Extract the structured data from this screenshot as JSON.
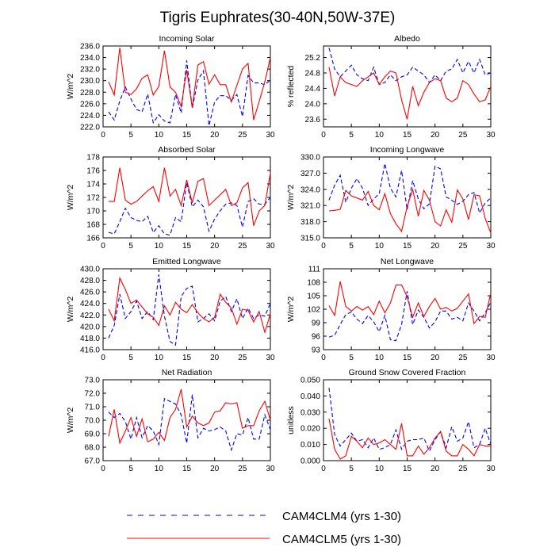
{
  "figure_title": "Tigris Euphrates(30-40N,50W-37E)",
  "legend": {
    "entries": [
      {
        "label": "CAM4CLM4 (yrs 1-30)",
        "color": "#0000ff",
        "style": "dashed"
      },
      {
        "label": "CAM4CLM5 (yrs 1-30)",
        "color": "#ff0000",
        "style": "solid"
      }
    ]
  },
  "colors": {
    "clm4": "#0000ff",
    "clm5": "#ff0000"
  },
  "chart_data": [
    {
      "type": "line",
      "title": "Incoming Solar",
      "ylabel": "W/m^2",
      "xlabel": "",
      "xlim": [
        0,
        30
      ],
      "x_ticks": [
        0,
        5,
        10,
        15,
        20,
        25,
        30
      ],
      "ylim": [
        222,
        236
      ],
      "y_tick_labels": [
        "222.0",
        "224.0",
        "226.0",
        "228.0",
        "230.0",
        "232.0",
        "234.0",
        "236.0"
      ],
      "x": [
        1,
        2,
        3,
        4,
        5,
        6,
        7,
        8,
        9,
        10,
        11,
        12,
        13,
        14,
        15,
        16,
        17,
        18,
        19,
        20,
        21,
        22,
        23,
        24,
        25,
        26,
        27,
        28,
        29,
        30
      ],
      "series": [
        {
          "name": "CAM4CLM4 (yrs 1-30)",
          "values": [
            224.6,
            223.2,
            226.5,
            228.9,
            226.8,
            225.0,
            224.6,
            227.7,
            222.7,
            224.1,
            223.0,
            222.7,
            227.6,
            224.4,
            233.5,
            225.2,
            230.1,
            231.7,
            222.2,
            226.3,
            227.4,
            227.4,
            226.6,
            227.6,
            223.8,
            230.9,
            229.6,
            229.6,
            229.3,
            230.1
          ]
        },
        {
          "name": "CAM4CLM5 (yrs 1-30)",
          "values": [
            229.8,
            227.5,
            235.7,
            228.0,
            227.6,
            228.6,
            230.4,
            231.0,
            227.5,
            229.0,
            235.2,
            228.9,
            228.0,
            225.5,
            231.9,
            225.3,
            232.7,
            233.3,
            229.4,
            231.0,
            229.3,
            229.3,
            226.3,
            229.2,
            232.0,
            233.0,
            223.2,
            226.4,
            229.8,
            234.0
          ]
        }
      ]
    },
    {
      "type": "line",
      "title": "Albedo",
      "ylabel": "% reflected",
      "xlabel": "",
      "xlim": [
        0,
        30
      ],
      "x_ticks": [
        0,
        5,
        10,
        15,
        20,
        25,
        30
      ],
      "ylim": [
        23.4,
        25.5
      ],
      "y_tick_labels": [
        "23.6",
        "24.0",
        "24.4",
        "24.8",
        "25.2"
      ],
      "x": [
        1,
        2,
        3,
        4,
        5,
        6,
        7,
        8,
        9,
        10,
        11,
        12,
        13,
        14,
        15,
        16,
        17,
        18,
        19,
        20,
        21,
        22,
        23,
        24,
        25,
        26,
        27,
        28,
        29,
        30
      ],
      "series": [
        {
          "name": "CAM4CLM4 (yrs 1-30)",
          "values": [
            25.45,
            24.9,
            24.7,
            24.85,
            25.0,
            24.75,
            24.65,
            24.6,
            24.95,
            24.5,
            24.55,
            24.75,
            24.6,
            24.7,
            24.75,
            24.95,
            24.85,
            24.75,
            24.55,
            24.75,
            24.6,
            24.85,
            24.9,
            25.15,
            24.8,
            25.1,
            24.8,
            25.15,
            24.75,
            24.8
          ]
        },
        {
          "name": "CAM4CLM5 (yrs 1-30)",
          "values": [
            24.95,
            24.2,
            24.7,
            24.55,
            24.5,
            24.45,
            24.6,
            24.7,
            24.8,
            24.5,
            24.7,
            24.85,
            24.8,
            24.1,
            23.6,
            24.45,
            23.95,
            24.3,
            24.55,
            24.65,
            24.6,
            24.15,
            24.05,
            24.15,
            24.6,
            24.5,
            24.25,
            24.05,
            24.1,
            24.45
          ]
        }
      ]
    },
    {
      "type": "line",
      "title": "Absorbed Solar",
      "ylabel": "W/m^2",
      "xlabel": "",
      "xlim": [
        0,
        30
      ],
      "x_ticks": [
        0,
        5,
        10,
        15,
        20,
        25,
        30
      ],
      "ylim": [
        166,
        178
      ],
      "y_tick_labels": [
        "166",
        "168",
        "170",
        "172",
        "174",
        "176",
        "178"
      ],
      "x": [
        1,
        2,
        3,
        4,
        5,
        6,
        7,
        8,
        9,
        10,
        11,
        12,
        13,
        14,
        15,
        16,
        17,
        18,
        19,
        20,
        21,
        22,
        23,
        24,
        25,
        26,
        27,
        28,
        29,
        30
      ],
      "series": [
        {
          "name": "CAM4CLM4 (yrs 1-30)",
          "values": [
            166.8,
            166.6,
            168.4,
            170.4,
            169.0,
            168.6,
            168.4,
            169.2,
            166.8,
            167.8,
            166.6,
            166.4,
            169.0,
            168.4,
            174.2,
            170.6,
            171.6,
            170.6,
            167.0,
            168.8,
            170.0,
            171.0,
            171.2,
            170.8,
            167.6,
            171.4,
            171.8,
            171.0,
            171.0,
            172.0
          ]
        },
        {
          "name": "CAM4CLM5 (yrs 1-30)",
          "values": [
            171.4,
            171.4,
            176.4,
            171.6,
            171.0,
            171.4,
            172.2,
            173.0,
            173.6,
            171.4,
            176.4,
            172.2,
            173.2,
            170.8,
            174.6,
            171.2,
            174.4,
            174.8,
            170.8,
            171.6,
            172.4,
            173.2,
            170.8,
            171.2,
            173.4,
            174.2,
            167.8,
            170.0,
            170.8,
            175.6
          ]
        }
      ]
    },
    {
      "type": "line",
      "title": "Incoming Longwave",
      "ylabel": "W/m^2",
      "xlabel": "",
      "xlim": [
        0,
        30
      ],
      "x_ticks": [
        0,
        5,
        10,
        15,
        20,
        25,
        30
      ],
      "ylim": [
        315,
        330
      ],
      "y_tick_labels": [
        "315.0",
        "318.0",
        "321.0",
        "324.0",
        "327.0",
        "330.0"
      ],
      "x": [
        1,
        2,
        3,
        4,
        5,
        6,
        7,
        8,
        9,
        10,
        11,
        12,
        13,
        14,
        15,
        16,
        17,
        18,
        19,
        20,
        21,
        22,
        23,
        24,
        25,
        26,
        27,
        28,
        29,
        30
      ],
      "series": [
        {
          "name": "CAM4CLM4 (yrs 1-30)",
          "values": [
            322.0,
            324.8,
            326.6,
            321.6,
            324.2,
            326.0,
            324.2,
            321.0,
            322.2,
            323.2,
            328.8,
            324.2,
            322.6,
            327.5,
            320.2,
            325.6,
            322.2,
            320.4,
            321.3,
            328.3,
            327.8,
            322.6,
            322.0,
            321.2,
            321.8,
            323.0,
            323.4,
            319.6,
            321.5,
            322.4
          ]
        },
        {
          "name": "CAM4CLM5 (yrs 1-30)",
          "values": [
            320.0,
            320.1,
            320.3,
            323.8,
            322.8,
            322.4,
            322.0,
            323.6,
            321.0,
            320.2,
            323.2,
            319.5,
            317.6,
            316.2,
            320.8,
            324.0,
            319.0,
            323.8,
            322.0,
            318.0,
            317.2,
            320.2,
            317.9,
            323.9,
            322.2,
            318.4,
            323.0,
            322.8,
            318.6,
            315.9
          ]
        }
      ]
    },
    {
      "type": "line",
      "title": "Emitted Longwave",
      "ylabel": "W/m^2",
      "xlabel": "",
      "xlim": [
        0,
        30
      ],
      "x_ticks": [
        0,
        5,
        10,
        15,
        20,
        25,
        30
      ],
      "ylim": [
        416,
        430
      ],
      "y_tick_labels": [
        "416.0",
        "418.0",
        "420.0",
        "422.0",
        "424.0",
        "426.0",
        "428.0",
        "430.0"
      ],
      "x": [
        1,
        2,
        3,
        4,
        5,
        6,
        7,
        8,
        9,
        10,
        11,
        12,
        13,
        14,
        15,
        16,
        17,
        18,
        19,
        20,
        21,
        22,
        23,
        24,
        25,
        26,
        27,
        28,
        29,
        30
      ],
      "series": [
        {
          "name": "CAM4CLM4 (yrs 1-30)",
          "values": [
            418.0,
            420.2,
            425.6,
            421.4,
            422.6,
            424.4,
            421.4,
            422.6,
            421.2,
            429.0,
            421.8,
            417.4,
            416.8,
            425.2,
            426.6,
            427.0,
            420.8,
            421.4,
            422.2,
            421.0,
            424.4,
            425.2,
            422.6,
            424.8,
            421.4,
            423.2,
            421.4,
            422.0,
            421.8,
            424.0
          ]
        },
        {
          "name": "CAM4CLM5 (yrs 1-30)",
          "values": [
            423.0,
            421.0,
            428.4,
            426.4,
            424.0,
            424.6,
            423.4,
            422.2,
            421.6,
            420.2,
            423.6,
            422.0,
            424.2,
            423.0,
            422.4,
            423.8,
            422.4,
            421.4,
            420.8,
            421.6,
            425.6,
            424.2,
            423.2,
            420.4,
            423.0,
            422.8,
            420.8,
            422.6,
            419.0,
            422.2
          ]
        }
      ]
    },
    {
      "type": "line",
      "title": "Net Longwave",
      "ylabel": "W/m^2",
      "xlabel": "",
      "xlim": [
        0,
        30
      ],
      "x_ticks": [
        0,
        5,
        10,
        15,
        20,
        25,
        30
      ],
      "ylim": [
        93,
        111
      ],
      "y_tick_labels": [
        "93",
        "96",
        "99",
        "102",
        "105",
        "108",
        "111"
      ],
      "x": [
        1,
        2,
        3,
        4,
        5,
        6,
        7,
        8,
        9,
        10,
        11,
        12,
        13,
        14,
        15,
        16,
        17,
        18,
        19,
        20,
        21,
        22,
        23,
        24,
        25,
        26,
        27,
        28,
        29,
        30
      ],
      "series": [
        {
          "name": "CAM4CLM4 (yrs 1-30)",
          "values": [
            95.8,
            96.2,
            98.6,
            100.8,
            101.4,
            99.8,
            98.8,
            100.6,
            99.2,
            97.0,
            100.6,
            95.2,
            95.0,
            98.6,
            106.0,
            98.6,
            101.8,
            100.2,
            97.8,
            99.2,
            101.6,
            101.6,
            99.8,
            100.2,
            99.4,
            103.4,
            101.6,
            99.4,
            101.2,
            103.6
          ]
        },
        {
          "name": "CAM4CLM5 (yrs 1-30)",
          "values": [
            102.8,
            100.6,
            108.2,
            102.6,
            101.6,
            102.6,
            101.8,
            102.6,
            100.8,
            103.8,
            101.2,
            103.4,
            107.4,
            107.4,
            104.8,
            100.2,
            103.4,
            100.4,
            102.6,
            104.4,
            102.0,
            102.4,
            101.6,
            102.2,
            103.8,
            105.4,
            98.8,
            100.4,
            100.2,
            105.6
          ]
        }
      ]
    },
    {
      "type": "line",
      "title": "Net Radiation",
      "ylabel": "W/m^2",
      "xlabel": "",
      "xlim": [
        0,
        30
      ],
      "x_ticks": [
        0,
        5,
        10,
        15,
        20,
        25,
        30
      ],
      "ylim": [
        67,
        73
      ],
      "y_tick_labels": [
        "67.0",
        "68.0",
        "69.0",
        "70.0",
        "71.0",
        "72.0",
        "73.0"
      ],
      "x": [
        1,
        2,
        3,
        4,
        5,
        6,
        7,
        8,
        9,
        10,
        11,
        12,
        13,
        14,
        15,
        16,
        17,
        18,
        19,
        20,
        21,
        22,
        23,
        24,
        25,
        26,
        27,
        28,
        29,
        30
      ],
      "series": [
        {
          "name": "CAM4CLM4 (yrs 1-30)",
          "values": [
            70.6,
            70.2,
            70.5,
            69.9,
            68.6,
            70.2,
            68.7,
            69.6,
            69.2,
            68.2,
            71.6,
            71.4,
            71.2,
            70.4,
            68.3,
            71.9,
            68.7,
            69.4,
            69.2,
            69.3,
            69.5,
            69.2,
            67.8,
            69.0,
            68.9,
            70.2,
            68.6,
            68.6,
            70.4,
            69.3
          ]
        },
        {
          "name": "CAM4CLM5 (yrs 1-30)",
          "values": [
            68.8,
            70.8,
            68.3,
            69.2,
            70.2,
            68.8,
            70.1,
            68.4,
            68.6,
            69.1,
            68.5,
            70.2,
            70.8,
            72.3,
            69.5,
            70.3,
            69.8,
            69.6,
            69.8,
            70.6,
            70.7,
            71.3,
            71.2,
            71.3,
            69.4,
            69.6,
            69.6,
            70.7,
            71.4,
            70.0
          ]
        }
      ]
    },
    {
      "type": "line",
      "title": "Ground Snow Covered Fraction",
      "ylabel": "unitless",
      "xlabel": "",
      "xlim": [
        0,
        30
      ],
      "x_ticks": [
        0,
        5,
        10,
        15,
        20,
        25,
        30
      ],
      "ylim": [
        0,
        0.05
      ],
      "y_tick_labels": [
        "0.000",
        "0.010",
        "0.020",
        "0.030",
        "0.040",
        "0.050"
      ],
      "x": [
        1,
        2,
        3,
        4,
        5,
        6,
        7,
        8,
        9,
        10,
        11,
        12,
        13,
        14,
        15,
        16,
        17,
        18,
        19,
        20,
        21,
        22,
        23,
        24,
        25,
        26,
        27,
        28,
        29,
        30
      ],
      "series": [
        {
          "name": "CAM4CLM4 (yrs 1-30)",
          "values": [
            0.045,
            0.016,
            0.009,
            0.013,
            0.017,
            0.012,
            0.013,
            0.008,
            0.014,
            0.007,
            0.008,
            0.01,
            0.019,
            0.007,
            0.012,
            0.013,
            0.013,
            0.014,
            0.006,
            0.013,
            0.018,
            0.008,
            0.021,
            0.012,
            0.014,
            0.024,
            0.008,
            0.01,
            0.02,
            0.01
          ]
        },
        {
          "name": "CAM4CLM5 (yrs 1-30)",
          "values": [
            0.026,
            0.007,
            0.001,
            0.003,
            0.015,
            0.012,
            0.008,
            0.014,
            0.01,
            0.011,
            0.013,
            0.01,
            0.007,
            0.023,
            0.003,
            0.003,
            0.009,
            0.004,
            0.008,
            0.014,
            0.018,
            0.006,
            0.003,
            0.003,
            0.01,
            0.007,
            0.003,
            0.01,
            0.009,
            0.009
          ]
        }
      ]
    }
  ]
}
